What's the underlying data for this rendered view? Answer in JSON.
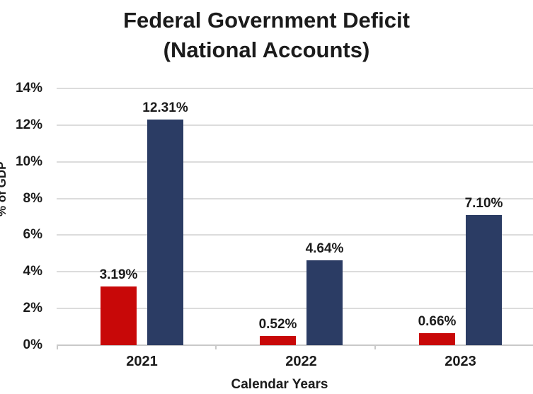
{
  "title": {
    "line1": "Federal Government Deficit",
    "line2": "(National Accounts)"
  },
  "chart_data": {
    "type": "bar",
    "title": "Federal Government Deficit (National Accounts)",
    "categories": [
      "2021",
      "2022",
      "2023"
    ],
    "series": [
      {
        "name": "red-series",
        "color": "#c80808",
        "values": [
          3.19,
          0.52,
          0.66
        ],
        "labels": [
          "3.19%",
          "0.52%",
          "0.66%"
        ]
      },
      {
        "name": "navy-series",
        "color": "#2b3c64",
        "values": [
          12.31,
          4.64,
          7.1
        ],
        "labels": [
          "12.31%",
          "4.64%",
          "7.10%"
        ]
      }
    ],
    "xlabel": "Calendar Years",
    "ylabel": "% of GDP",
    "ylim": [
      0,
      14
    ],
    "ytick_step": 2,
    "ytick_labels": [
      "0%",
      "2%",
      "4%",
      "6%",
      "8%",
      "10%",
      "12%",
      "14%"
    ],
    "grid": true,
    "legend_position": "none",
    "gridline_color": "#dcdcdc",
    "axis_line_color": "#c9c9c9",
    "text_color": "#1b1b1b"
  }
}
